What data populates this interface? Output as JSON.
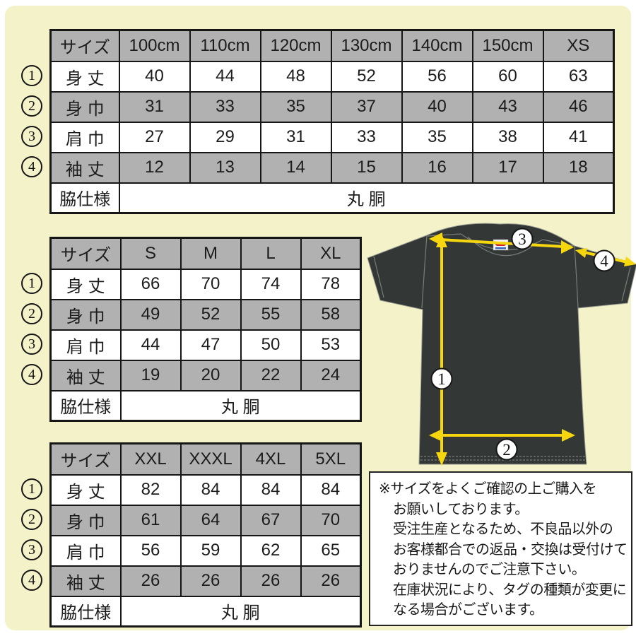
{
  "colors": {
    "background": "#f3f2c8",
    "table_header_gray": "#b1b1b1",
    "table_border": "#161616",
    "arrow_yellow": "#f6d60e",
    "shirt_body": "#333836",
    "shirt_stitch": "#787d78",
    "tag_red": "#cc2a2a",
    "tag_blue": "#3566bb"
  },
  "tables": [
    {
      "id": "kids",
      "header": [
        "サイズ",
        "100cm",
        "110cm",
        "120cm",
        "130cm",
        "140cm",
        "150cm",
        "XS"
      ],
      "rows": [
        {
          "num": "1",
          "label": "身 丈",
          "values": [
            40,
            44,
            48,
            52,
            56,
            60,
            63
          ]
        },
        {
          "num": "2",
          "label": "身 巾",
          "values": [
            31,
            33,
            35,
            37,
            40,
            43,
            46
          ]
        },
        {
          "num": "3",
          "label": "肩 巾",
          "values": [
            27,
            29,
            31,
            33,
            35,
            38,
            41
          ]
        },
        {
          "num": "4",
          "label": "袖 丈",
          "values": [
            12,
            13,
            14,
            15,
            16,
            17,
            18
          ]
        }
      ],
      "footer_label": "脇仕様",
      "footer_value": "丸 胴"
    },
    {
      "id": "adult",
      "header": [
        "サイズ",
        "S",
        "M",
        "L",
        "XL"
      ],
      "rows": [
        {
          "num": "1",
          "label": "身 丈",
          "values": [
            66,
            70,
            74,
            78
          ]
        },
        {
          "num": "2",
          "label": "身 巾",
          "values": [
            49,
            52,
            55,
            58
          ]
        },
        {
          "num": "3",
          "label": "肩 巾",
          "values": [
            44,
            47,
            50,
            53
          ]
        },
        {
          "num": "4",
          "label": "袖 丈",
          "values": [
            19,
            20,
            22,
            24
          ]
        }
      ],
      "footer_label": "脇仕様",
      "footer_value": "丸 胴"
    },
    {
      "id": "plus",
      "header": [
        "サイズ",
        "XXL",
        "XXXL",
        "4XL",
        "5XL"
      ],
      "rows": [
        {
          "num": "1",
          "label": "身 丈",
          "values": [
            82,
            84,
            84,
            84
          ]
        },
        {
          "num": "2",
          "label": "身 巾",
          "values": [
            61,
            64,
            67,
            70
          ]
        },
        {
          "num": "3",
          "label": "肩 巾",
          "values": [
            56,
            59,
            62,
            65
          ]
        },
        {
          "num": "4",
          "label": "袖 丈",
          "values": [
            26,
            26,
            26,
            26
          ]
        }
      ],
      "footer_label": "脇仕様",
      "footer_value": "丸 胴"
    }
  ],
  "diagram": {
    "labels": [
      "1",
      "2",
      "3",
      "4"
    ]
  },
  "note": {
    "lines": [
      "※サイズをよくご確認の上ご購入を",
      "お願いしております。",
      "受注生産となるため、不良品以外の",
      "お客様都合での返品・交換は受付けて",
      "おりませんのでご注意下さい。",
      "在庫状況により、タグの種類が変更に",
      "なる場合がございます。"
    ]
  }
}
